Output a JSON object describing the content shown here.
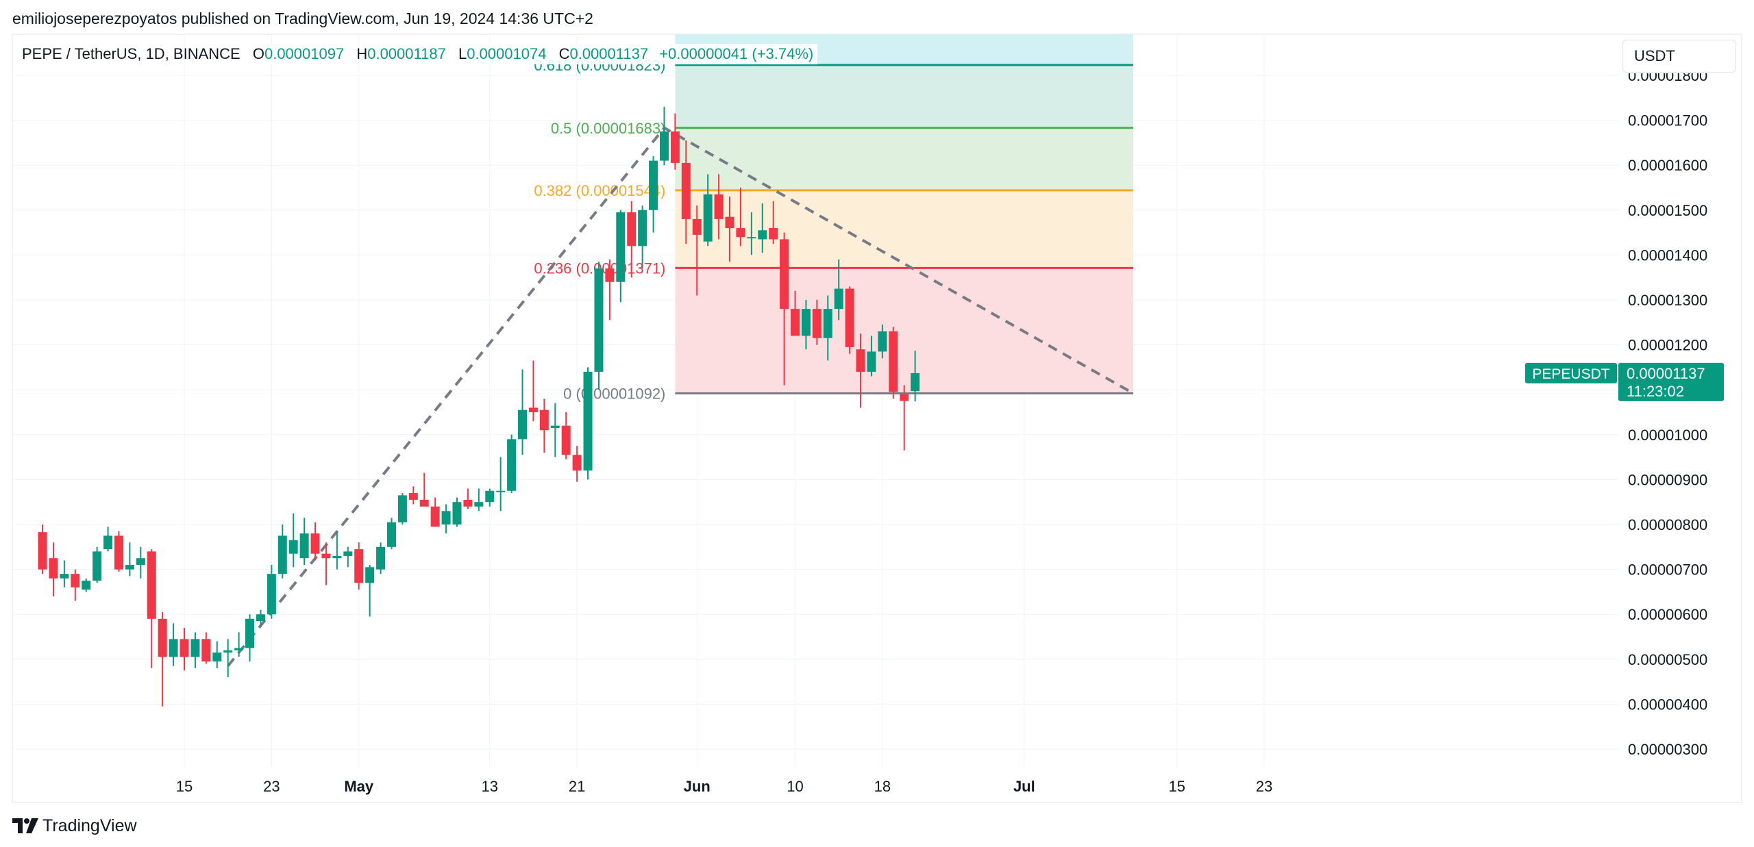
{
  "publisher_line": "emiliojoseperezpoyatos published on TradingView.com, Jun 19, 2024 14:36 UTC+2",
  "symbol": {
    "name": "PEPE / TetherUS, 1D, BINANCE",
    "open_label": "O",
    "open": "0.00001097",
    "high_label": "H",
    "high": "0.00001187",
    "low_label": "L",
    "low": "0.00001074",
    "close_label": "C",
    "close": "0.00001137",
    "change": "+0.00000041 (+3.74%)"
  },
  "currency": "USDT",
  "brand": "TradingView",
  "colors": {
    "up": "#089981",
    "down": "#f23645",
    "grid": "#f0f3fa",
    "axis_text": "#131722",
    "fib_0618": "#089981",
    "fib_05": "#4caf50",
    "fib_0382": "#f9a825",
    "fib_0236": "#f23645",
    "fib_0": "#787b86",
    "trend": "#787b86"
  },
  "chart_data": {
    "type": "candlestick",
    "ylim": [
      2.7e-06,
      1.85e-05
    ],
    "y_ticks": [
      "0.00000300",
      "0.00000400",
      "0.00000500",
      "0.00000600",
      "0.00000700",
      "0.00000800",
      "0.00000900",
      "0.00001000",
      "0.00001100",
      "0.00001200",
      "0.00001300",
      "0.00001400",
      "0.00001500",
      "0.00001600",
      "0.00001700",
      "0.00001800"
    ],
    "x_ticks": [
      {
        "date": "2024-04-15",
        "label": "15",
        "bold": false
      },
      {
        "date": "2024-04-23",
        "label": "23",
        "bold": false
      },
      {
        "date": "2024-05-01",
        "label": "May",
        "bold": true
      },
      {
        "date": "2024-05-13",
        "label": "13",
        "bold": false
      },
      {
        "date": "2024-05-21",
        "label": "21",
        "bold": false
      },
      {
        "date": "2024-06-01",
        "label": "Jun",
        "bold": true
      },
      {
        "date": "2024-06-10",
        "label": "10",
        "bold": false
      },
      {
        "date": "2024-06-18",
        "label": "18",
        "bold": false
      },
      {
        "date": "2024-07-01",
        "label": "Jul",
        "bold": true
      },
      {
        "date": "2024-07-15",
        "label": "15",
        "bold": false
      },
      {
        "date": "2024-07-23",
        "label": "23",
        "bold": false
      }
    ],
    "candles": [
      {
        "date": "2024-04-02",
        "o": 7.83e-06,
        "h": 8e-06,
        "l": 6.9e-06,
        "c": 7e-06
      },
      {
        "date": "2024-04-03",
        "o": 7.25e-06,
        "h": 7.6e-06,
        "l": 6.4e-06,
        "c": 6.8e-06
      },
      {
        "date": "2024-04-04",
        "o": 6.8e-06,
        "h": 7.2e-06,
        "l": 6.6e-06,
        "c": 6.9e-06
      },
      {
        "date": "2024-04-05",
        "o": 6.9e-06,
        "h": 7e-06,
        "l": 6.3e-06,
        "c": 6.6e-06
      },
      {
        "date": "2024-04-06",
        "o": 6.55e-06,
        "h": 6.8e-06,
        "l": 6.5e-06,
        "c": 6.75e-06
      },
      {
        "date": "2024-04-07",
        "o": 6.75e-06,
        "h": 7.5e-06,
        "l": 6.7e-06,
        "c": 7.4e-06
      },
      {
        "date": "2024-04-08",
        "o": 7.45e-06,
        "h": 7.95e-06,
        "l": 7.4e-06,
        "c": 7.75e-06
      },
      {
        "date": "2024-04-09",
        "o": 7.75e-06,
        "h": 7.85e-06,
        "l": 6.95e-06,
        "c": 7e-06
      },
      {
        "date": "2024-04-10",
        "o": 7e-06,
        "h": 7.6e-06,
        "l": 6.85e-06,
        "c": 7.1e-06
      },
      {
        "date": "2024-04-11",
        "o": 7.1e-06,
        "h": 7.5e-06,
        "l": 6.8e-06,
        "c": 7.25e-06
      },
      {
        "date": "2024-04-12",
        "o": 7.4e-06,
        "h": 7.45e-06,
        "l": 4.8e-06,
        "c": 5.9e-06
      },
      {
        "date": "2024-04-13",
        "o": 5.9e-06,
        "h": 6.05e-06,
        "l": 3.95e-06,
        "c": 5.05e-06
      },
      {
        "date": "2024-04-14",
        "o": 5.05e-06,
        "h": 5.8e-06,
        "l": 4.85e-06,
        "c": 5.45e-06
      },
      {
        "date": "2024-04-15",
        "o": 5.45e-06,
        "h": 5.7e-06,
        "l": 4.75e-06,
        "c": 5.05e-06
      },
      {
        "date": "2024-04-16",
        "o": 5.05e-06,
        "h": 5.6e-06,
        "l": 4.8e-06,
        "c": 5.45e-06
      },
      {
        "date": "2024-04-17",
        "o": 5.45e-06,
        "h": 5.6e-06,
        "l": 4.9e-06,
        "c": 4.95e-06
      },
      {
        "date": "2024-04-18",
        "o": 4.95e-06,
        "h": 5.4e-06,
        "l": 4.8e-06,
        "c": 5.15e-06
      },
      {
        "date": "2024-04-19",
        "o": 5.15e-06,
        "h": 5.45e-06,
        "l": 4.6e-06,
        "c": 5.2e-06
      },
      {
        "date": "2024-04-20",
        "o": 5.2e-06,
        "h": 5.6e-06,
        "l": 5.05e-06,
        "c": 5.25e-06
      },
      {
        "date": "2024-04-21",
        "o": 5.25e-06,
        "h": 6e-06,
        "l": 4.95e-06,
        "c": 5.9e-06
      },
      {
        "date": "2024-04-22",
        "o": 5.85e-06,
        "h": 6.1e-06,
        "l": 5.75e-06,
        "c": 6e-06
      },
      {
        "date": "2024-04-23",
        "o": 6e-06,
        "h": 7.1e-06,
        "l": 5.9e-06,
        "c": 6.9e-06
      },
      {
        "date": "2024-04-24",
        "o": 6.9e-06,
        "h": 8e-06,
        "l": 6.8e-06,
        "c": 7.75e-06
      },
      {
        "date": "2024-04-25",
        "o": 7.35e-06,
        "h": 8.25e-06,
        "l": 7.05e-06,
        "c": 7.65e-06
      },
      {
        "date": "2024-04-26",
        "o": 7.25e-06,
        "h": 8.15e-06,
        "l": 7.1e-06,
        "c": 7.8e-06
      },
      {
        "date": "2024-04-27",
        "o": 7.8e-06,
        "h": 8.05e-06,
        "l": 7.2e-06,
        "c": 7.35e-06
      },
      {
        "date": "2024-04-28",
        "o": 7.35e-06,
        "h": 7.6e-06,
        "l": 6.65e-06,
        "c": 7.25e-06
      },
      {
        "date": "2024-04-29",
        "o": 7.25e-06,
        "h": 7.85e-06,
        "l": 7e-06,
        "c": 7.3e-06
      },
      {
        "date": "2024-04-30",
        "o": 7.3e-06,
        "h": 7.5e-06,
        "l": 7.05e-06,
        "c": 7.4e-06
      },
      {
        "date": "2024-05-01",
        "o": 7.45e-06,
        "h": 7.6e-06,
        "l": 6.55e-06,
        "c": 6.7e-06
      },
      {
        "date": "2024-05-02",
        "o": 6.7e-06,
        "h": 7.1e-06,
        "l": 5.95e-06,
        "c": 7.05e-06
      },
      {
        "date": "2024-05-03",
        "o": 7e-06,
        "h": 7.6e-06,
        "l": 6.9e-06,
        "c": 7.5e-06
      },
      {
        "date": "2024-05-04",
        "o": 7.5e-06,
        "h": 8.15e-06,
        "l": 7.45e-06,
        "c": 8.05e-06
      },
      {
        "date": "2024-05-05",
        "o": 8.05e-06,
        "h": 8.7e-06,
        "l": 8e-06,
        "c": 8.65e-06
      },
      {
        "date": "2024-05-06",
        "o": 8.7e-06,
        "h": 8.85e-06,
        "l": 8.45e-06,
        "c": 8.55e-06
      },
      {
        "date": "2024-05-07",
        "o": 8.55e-06,
        "h": 9.15e-06,
        "l": 8.4e-06,
        "c": 8.4e-06
      },
      {
        "date": "2024-05-08",
        "o": 8.4e-06,
        "h": 8.6e-06,
        "l": 7.95e-06,
        "c": 7.95e-06
      },
      {
        "date": "2024-05-09",
        "o": 8e-06,
        "h": 8.45e-06,
        "l": 7.8e-06,
        "c": 8.3e-06
      },
      {
        "date": "2024-05-10",
        "o": 8e-06,
        "h": 8.6e-06,
        "l": 7.95e-06,
        "c": 8.5e-06
      },
      {
        "date": "2024-05-11",
        "o": 8.55e-06,
        "h": 8.8e-06,
        "l": 8.35e-06,
        "c": 8.4e-06
      },
      {
        "date": "2024-05-12",
        "o": 8.4e-06,
        "h": 8.8e-06,
        "l": 8.3e-06,
        "c": 8.5e-06
      },
      {
        "date": "2024-05-13",
        "o": 8.5e-06,
        "h": 8.8e-06,
        "l": 8.4e-06,
        "c": 8.75e-06
      },
      {
        "date": "2024-05-14",
        "o": 8.75e-06,
        "h": 9.5e-06,
        "l": 8.3e-06,
        "c": 8.75e-06
      },
      {
        "date": "2024-05-15",
        "o": 8.75e-06,
        "h": 1e-05,
        "l": 8.7e-06,
        "c": 9.9e-06
      },
      {
        "date": "2024-05-16",
        "o": 9.9e-06,
        "h": 1.145e-05,
        "l": 9.55e-06,
        "c": 1.055e-05
      },
      {
        "date": "2024-05-17",
        "o": 1.06e-05,
        "h": 1.165e-05,
        "l": 1.03e-05,
        "c": 1.05e-05
      },
      {
        "date": "2024-05-18",
        "o": 1.055e-05,
        "h": 1.08e-05,
        "l": 9.6e-06,
        "c": 1.01e-05
      },
      {
        "date": "2024-05-19",
        "o": 1.015e-05,
        "h": 1.07e-05,
        "l": 9.5e-06,
        "c": 1.02e-05
      },
      {
        "date": "2024-05-20",
        "o": 1.02e-05,
        "h": 1.05e-05,
        "l": 9.45e-06,
        "c": 9.55e-06
      },
      {
        "date": "2024-05-21",
        "o": 9.55e-06,
        "h": 9.75e-06,
        "l": 8.95e-06,
        "c": 9.2e-06
      },
      {
        "date": "2024-05-22",
        "o": 9.2e-06,
        "h": 1.15e-05,
        "l": 9e-06,
        "c": 1.14e-05
      },
      {
        "date": "2024-05-23",
        "o": 1.14e-05,
        "h": 1.385e-05,
        "l": 1.1e-05,
        "c": 1.37e-05
      },
      {
        "date": "2024-05-24",
        "o": 1.37e-05,
        "h": 1.39e-05,
        "l": 1.255e-05,
        "c": 1.34e-05
      },
      {
        "date": "2024-05-25",
        "o": 1.34e-05,
        "h": 1.5e-05,
        "l": 1.295e-05,
        "c": 1.495e-05
      },
      {
        "date": "2024-05-26",
        "o": 1.495e-05,
        "h": 1.52e-05,
        "l": 1.35e-05,
        "c": 1.42e-05
      },
      {
        "date": "2024-05-27",
        "o": 1.42e-05,
        "h": 1.51e-05,
        "l": 1.37e-05,
        "c": 1.5e-05
      },
      {
        "date": "2024-05-28",
        "o": 1.5e-05,
        "h": 1.62e-05,
        "l": 1.45e-05,
        "c": 1.61e-05
      },
      {
        "date": "2024-05-29",
        "o": 1.61e-05,
        "h": 1.73e-05,
        "l": 1.6e-05,
        "c": 1.675e-05
      },
      {
        "date": "2024-05-30",
        "o": 1.675e-05,
        "h": 1.715e-05,
        "l": 1.59e-05,
        "c": 1.605e-05
      },
      {
        "date": "2024-05-31",
        "o": 1.605e-05,
        "h": 1.655e-05,
        "l": 1.425e-05,
        "c": 1.48e-05
      },
      {
        "date": "2024-06-01",
        "o": 1.48e-05,
        "h": 1.51e-05,
        "l": 1.31e-05,
        "c": 1.445e-05
      },
      {
        "date": "2024-06-02",
        "o": 1.43e-05,
        "h": 1.58e-05,
        "l": 1.42e-05,
        "c": 1.535e-05
      },
      {
        "date": "2024-06-03",
        "o": 1.535e-05,
        "h": 1.58e-05,
        "l": 1.435e-05,
        "c": 1.48e-05
      },
      {
        "date": "2024-06-04",
        "o": 1.485e-05,
        "h": 1.53e-05,
        "l": 1.385e-05,
        "c": 1.46e-05
      },
      {
        "date": "2024-06-05",
        "o": 1.46e-05,
        "h": 1.55e-05,
        "l": 1.42e-05,
        "c": 1.44e-05
      },
      {
        "date": "2024-06-06",
        "o": 1.44e-05,
        "h": 1.495e-05,
        "l": 1.4e-05,
        "c": 1.44e-05
      },
      {
        "date": "2024-06-07",
        "o": 1.435e-05,
        "h": 1.515e-05,
        "l": 1.405e-05,
        "c": 1.455e-05
      },
      {
        "date": "2024-06-08",
        "o": 1.46e-05,
        "h": 1.52e-05,
        "l": 1.425e-05,
        "c": 1.435e-05
      },
      {
        "date": "2024-06-09",
        "o": 1.435e-05,
        "h": 1.45e-05,
        "l": 1.11e-05,
        "c": 1.28e-05
      },
      {
        "date": "2024-06-10",
        "o": 1.28e-05,
        "h": 1.32e-05,
        "l": 1.22e-05,
        "c": 1.22e-05
      },
      {
        "date": "2024-06-11",
        "o": 1.22e-05,
        "h": 1.3e-05,
        "l": 1.19e-05,
        "c": 1.28e-05
      },
      {
        "date": "2024-06-12",
        "o": 1.28e-05,
        "h": 1.3e-05,
        "l": 1.2e-05,
        "c": 1.215e-05
      },
      {
        "date": "2024-06-13",
        "o": 1.215e-05,
        "h": 1.31e-05,
        "l": 1.165e-05,
        "c": 1.28e-05
      },
      {
        "date": "2024-06-14",
        "o": 1.28e-05,
        "h": 1.39e-05,
        "l": 1.255e-05,
        "c": 1.325e-05
      },
      {
        "date": "2024-06-15",
        "o": 1.325e-05,
        "h": 1.33e-05,
        "l": 1.18e-05,
        "c": 1.195e-05
      },
      {
        "date": "2024-06-16",
        "o": 1.19e-05,
        "h": 1.225e-05,
        "l": 1.06e-05,
        "c": 1.14e-05
      },
      {
        "date": "2024-06-17",
        "o": 1.14e-05,
        "h": 1.22e-05,
        "l": 1.13e-05,
        "c": 1.185e-05
      },
      {
        "date": "2024-06-18",
        "o": 1.185e-05,
        "h": 1.245e-05,
        "l": 1.17e-05,
        "c": 1.23e-05
      },
      {
        "date": "2024-06-19",
        "o": 1.23e-05,
        "h": 1.24e-05,
        "l": 1.08e-05,
        "c": 1.095e-05
      },
      {
        "date": "2024-06-20",
        "o": 1.09e-05,
        "h": 1.11e-05,
        "l": 9.65e-06,
        "c": 1.075e-05
      },
      {
        "date": "2024-06-21",
        "o": 1.097e-05,
        "h": 1.187e-05,
        "l": 1.074e-05,
        "c": 1.137e-05
      }
    ],
    "fib_retracement": {
      "start_date": "2024-05-30",
      "end_date": "2024-07-11",
      "levels": [
        {
          "ratio": 0.618,
          "price": 1.823e-05,
          "label": "0.618 (0.00001823)",
          "color": "#089981",
          "fill": "#d6ede8"
        },
        {
          "ratio": 0.5,
          "price": 1.683e-05,
          "label": "0.5 (0.00001683)",
          "color": "#4caf50",
          "fill": "#e0f0de"
        },
        {
          "ratio": 0.382,
          "price": 1.544e-05,
          "label": "0.382 (0.00001544)",
          "color": "#f9a825",
          "fill": "#fdeed8"
        },
        {
          "ratio": 0.236,
          "price": 1.371e-05,
          "label": "0.236 (0.00001371)",
          "color": "#f23645",
          "fill": "#fcdde0"
        },
        {
          "ratio": 0,
          "price": 1.092e-05,
          "label": "0 (0.00001092)",
          "color": "#787b86",
          "fill": null
        }
      ],
      "top_band_fill": "#d1f1f4"
    },
    "trend_line": [
      {
        "date": "2024-04-19",
        "price": 4.85e-06
      },
      {
        "date": "2024-05-29",
        "price": 1.683e-05
      },
      {
        "date": "2024-07-11",
        "price": 1.092e-05
      }
    ],
    "last_price": {
      "symbol": "PEPEUSDT",
      "price": "0.00001137",
      "countdown": "11:23:02",
      "value": 1.137e-05
    }
  }
}
